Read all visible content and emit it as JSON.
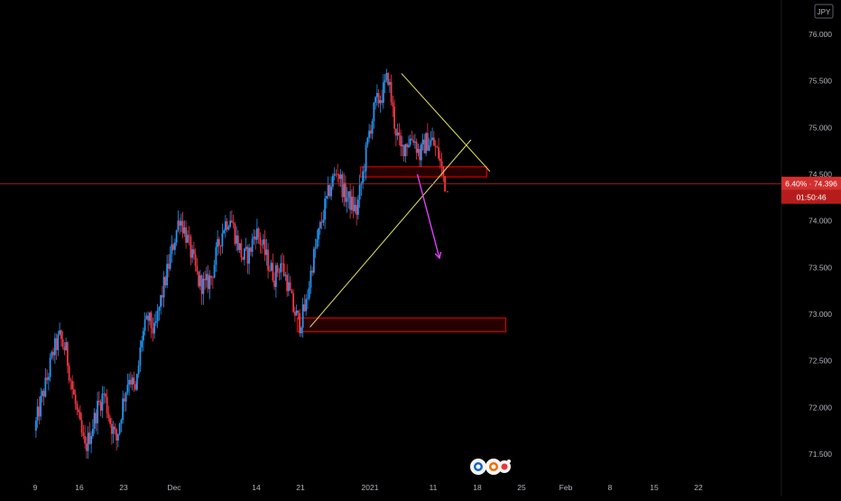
{
  "chart_data": {
    "type": "candlestick",
    "currency_badge": "JPY",
    "y_ticks": [
      "76.000",
      "75.500",
      "75.000",
      "74.500",
      "74.000",
      "73.500",
      "73.000",
      "72.500",
      "72.000",
      "71.500"
    ],
    "y_tick_values": [
      76.0,
      75.5,
      75.0,
      74.5,
      74.0,
      73.5,
      73.0,
      72.5,
      72.0,
      71.5
    ],
    "ylim": [
      71.25,
      76.2
    ],
    "x_ticks": [
      {
        "label": "9",
        "day": 0
      },
      {
        "label": "16",
        "day": 7
      },
      {
        "label": "23",
        "day": 14
      },
      {
        "label": "Dec",
        "day": 22
      },
      {
        "label": "14",
        "day": 35
      },
      {
        "label": "21",
        "day": 42
      },
      {
        "label": "2021",
        "day": 53
      },
      {
        "label": "11",
        "day": 63
      },
      {
        "label": "18",
        "day": 70
      },
      {
        "label": "25",
        "day": 77
      },
      {
        "label": "Feb",
        "day": 84
      },
      {
        "label": "8",
        "day": 91
      },
      {
        "label": "15",
        "day": 98
      },
      {
        "label": "22",
        "day": 105
      }
    ],
    "current_price": 74.396,
    "price_badge": "6.40% · 74.396",
    "countdown": "01:50:46",
    "colors": {
      "up": "#2196f3",
      "down": "#f23645",
      "price_line": "#c62828",
      "zone": "#d50000",
      "triangle": "#e8e85a",
      "arrow": "#e040fb",
      "axis_text": "#b2b5be",
      "axis_line": "#363a45"
    },
    "close_path": [
      [
        0,
        71.75
      ],
      [
        1,
        72.05
      ],
      [
        2,
        72.3
      ],
      [
        3,
        72.6
      ],
      [
        4,
        72.75
      ],
      [
        5,
        72.6
      ],
      [
        6,
        72.2
      ],
      [
        7,
        71.85
      ],
      [
        8,
        71.55
      ],
      [
        9,
        71.75
      ],
      [
        10,
        72.0
      ],
      [
        11,
        72.15
      ],
      [
        12,
        71.85
      ],
      [
        13,
        71.65
      ],
      [
        14,
        72.05
      ],
      [
        15,
        72.35
      ],
      [
        16,
        72.15
      ],
      [
        17,
        72.75
      ],
      [
        18,
        72.95
      ],
      [
        19,
        72.8
      ],
      [
        20,
        73.15
      ],
      [
        21,
        73.45
      ],
      [
        22,
        73.75
      ],
      [
        23,
        74.05
      ],
      [
        24,
        73.85
      ],
      [
        25,
        73.6
      ],
      [
        26,
        73.35
      ],
      [
        27,
        73.3
      ],
      [
        28,
        73.4
      ],
      [
        29,
        73.7
      ],
      [
        30,
        73.95
      ],
      [
        31,
        74.05
      ],
      [
        32,
        73.8
      ],
      [
        33,
        73.6
      ],
      [
        34,
        73.65
      ],
      [
        35,
        73.9
      ],
      [
        36,
        73.75
      ],
      [
        37,
        73.55
      ],
      [
        38,
        73.4
      ],
      [
        39,
        73.55
      ],
      [
        40,
        73.35
      ],
      [
        41,
        73.05
      ],
      [
        42,
        72.9
      ],
      [
        43,
        73.1
      ],
      [
        44,
        73.55
      ],
      [
        45,
        73.85
      ],
      [
        46,
        74.15
      ],
      [
        47,
        74.4
      ],
      [
        48,
        74.55
      ],
      [
        49,
        74.3
      ],
      [
        50,
        74.2
      ],
      [
        51,
        74.1
      ],
      [
        52,
        74.5
      ],
      [
        53,
        74.95
      ],
      [
        54,
        75.25
      ],
      [
        55,
        75.35
      ],
      [
        56,
        75.55
      ],
      [
        57,
        75.05
      ],
      [
        58,
        74.75
      ],
      [
        59,
        74.85
      ],
      [
        60,
        74.9
      ],
      [
        61,
        74.7
      ],
      [
        62,
        74.85
      ],
      [
        63,
        74.85
      ],
      [
        64,
        74.7
      ],
      [
        65,
        74.4
      ]
    ],
    "bars_per_day": 4,
    "zones": [
      {
        "name": "resistance-support-zone",
        "day_from": 51.5,
        "day_to": 71.5,
        "low": 74.5,
        "high": 74.56
      },
      {
        "name": "demand-zone",
        "day_from": 41.5,
        "day_to": 74.5,
        "low": 72.84,
        "high": 72.94
      }
    ],
    "triangle_lines": [
      {
        "from": {
          "day": 58,
          "price": 75.58
        },
        "to": {
          "day": 72,
          "price": 74.53
        }
      },
      {
        "from": {
          "day": 43.5,
          "price": 72.86
        },
        "to": {
          "day": 69,
          "price": 74.87
        }
      }
    ],
    "arrow": {
      "from": {
        "day": 60.5,
        "price": 74.5
      },
      "to": {
        "day": 64,
        "price": 73.6
      }
    },
    "logo": "watermark-logo"
  }
}
